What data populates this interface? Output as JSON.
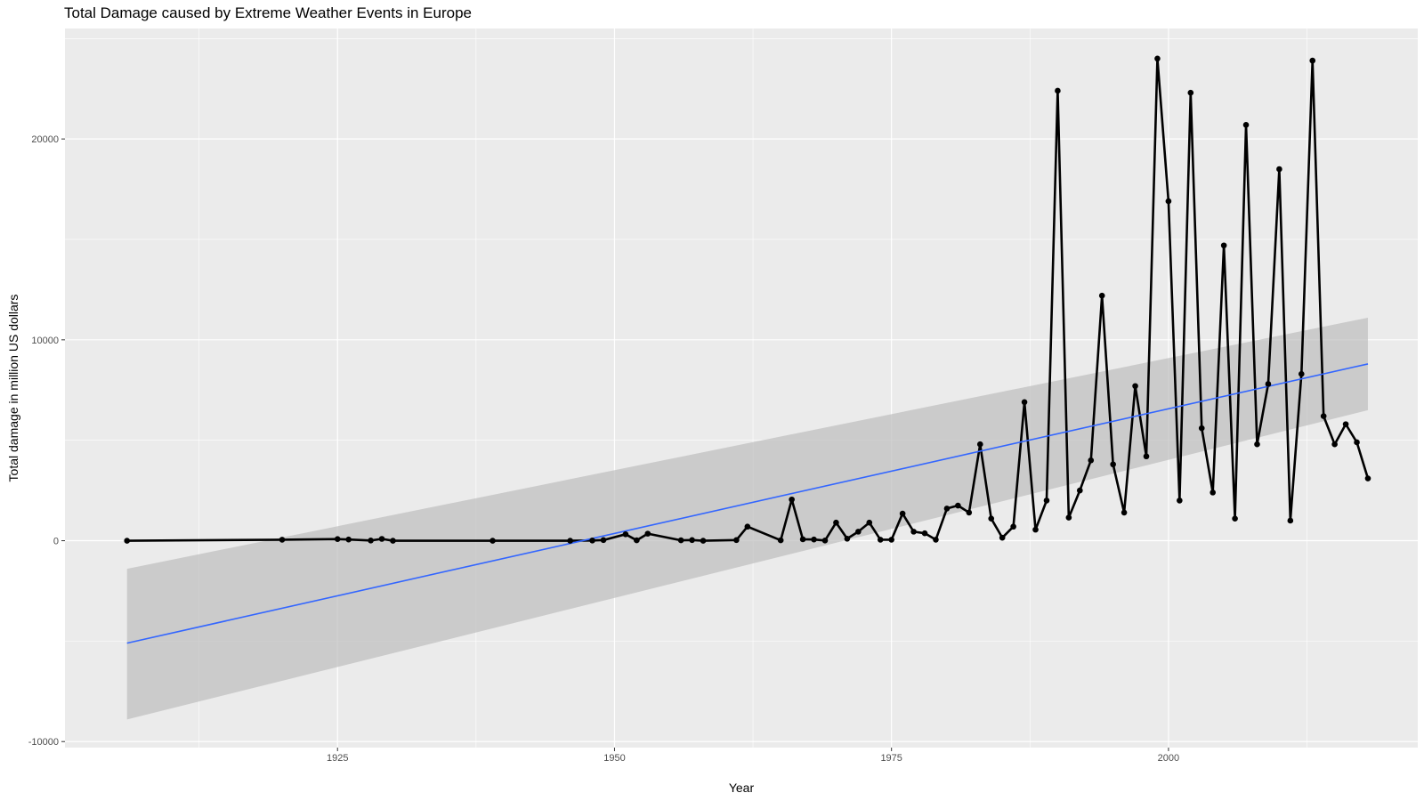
{
  "chart_data": {
    "type": "line",
    "title": "Total Damage caused by Extreme Weather Events in Europe",
    "xlabel": "Year",
    "ylabel": "Total damage in million US dollars",
    "xlim": [
      1900.4,
      2022.5
    ],
    "ylim": [
      -10300,
      25500
    ],
    "x_ticks": [
      1925,
      1950,
      1975,
      2000
    ],
    "y_ticks": [
      -10000,
      0,
      10000,
      20000
    ],
    "grid": true,
    "legend": "none",
    "colors": {
      "panel": "#ebebeb",
      "grid": "#ffffff",
      "line": "#000000",
      "trend": "#3366ff",
      "band": "#bdbdbd"
    },
    "series": [
      {
        "x": [
          1906,
          1920,
          1925,
          1926,
          1928,
          1929,
          1930,
          1939,
          1946,
          1948,
          1949,
          1951,
          1952,
          1953,
          1956,
          1957,
          1958,
          1961,
          1962,
          1965,
          1966,
          1967,
          1968,
          1969,
          1970,
          1971,
          1972,
          1973,
          1974,
          1975,
          1976,
          1977,
          1978,
          1979,
          1980,
          1981,
          1982,
          1983,
          1984,
          1985,
          1986,
          1987,
          1988,
          1989,
          1990,
          1991,
          1992,
          1993,
          1994,
          1995,
          1996,
          1997,
          1998,
          1999,
          2000,
          2001,
          2002,
          2003,
          2004,
          2005,
          2006,
          2007,
          2008,
          2009,
          2010,
          2011,
          2012,
          2013,
          2014,
          2015,
          2016,
          2017,
          2018
        ],
        "values": [
          0,
          50,
          80,
          60,
          10,
          90,
          0,
          0,
          0,
          10,
          30,
          320,
          20,
          350,
          20,
          30,
          0,
          30,
          700,
          20,
          2050,
          70,
          60,
          10,
          900,
          100,
          450,
          900,
          50,
          50,
          1350,
          450,
          370,
          50,
          1600,
          1750,
          1400,
          4800,
          1100,
          150,
          700,
          6900,
          550,
          2000,
          22400,
          1150,
          2500,
          4000,
          12200,
          3800,
          1400,
          7700,
          4200,
          24000,
          16900,
          2000,
          22300,
          5600,
          2400,
          14700,
          1100,
          20700,
          4800,
          7800,
          18500,
          1000,
          8300,
          23900,
          6200,
          4800,
          5800,
          4900,
          3100
        ]
      }
    ],
    "trend": {
      "x": [
        1906,
        2018
      ],
      "fit": [
        -5100,
        8800
      ],
      "lower": [
        -8900,
        6500
      ],
      "upper": [
        -1400,
        11100
      ]
    }
  }
}
